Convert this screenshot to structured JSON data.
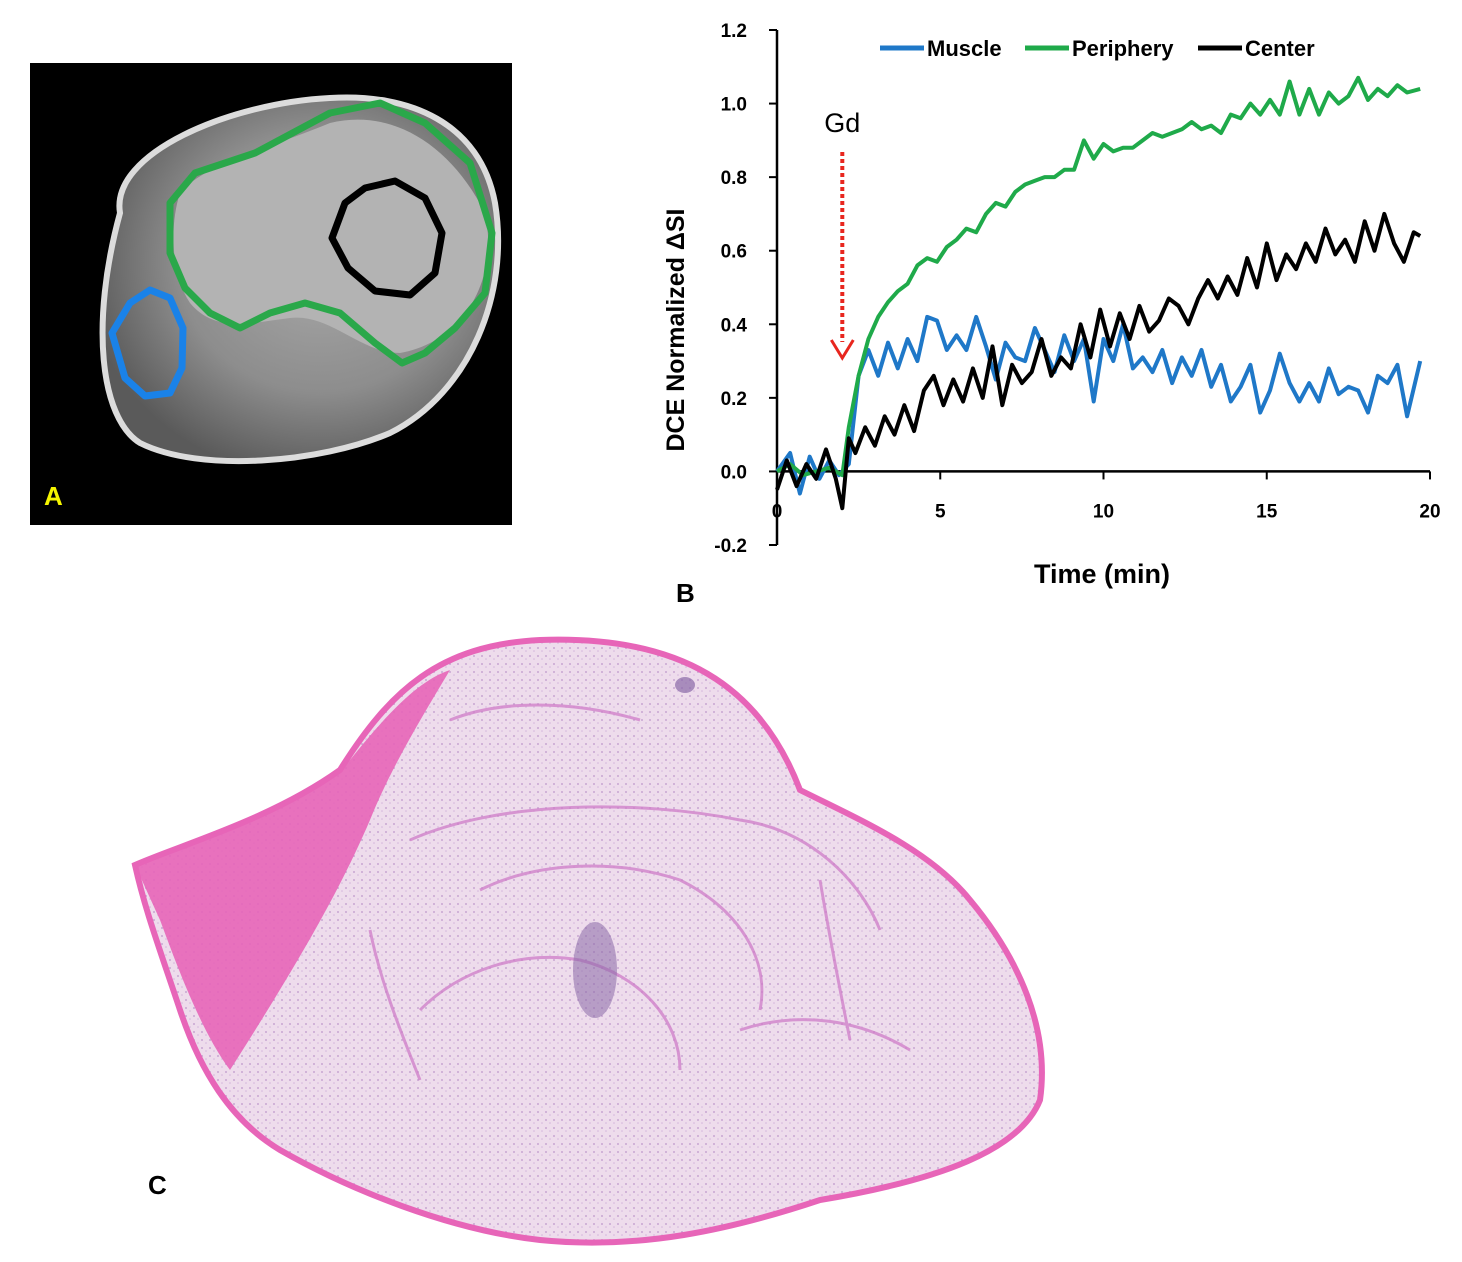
{
  "panels": {
    "a": "A",
    "b": "B",
    "c": "C"
  },
  "colors": {
    "muscle": "#1f78c8",
    "periphery": "#1faa4a",
    "center": "#000000",
    "roi_muscle": "#1a82e8",
    "roi_periphery": "#2aa84a",
    "roi_center": "#000000",
    "arrow": "#e8261e",
    "stain_pink": "#e765b8",
    "stain_light": "#eedcec",
    "stain_purple": "#8a6aa8"
  },
  "chart_data": {
    "type": "line",
    "title": "",
    "xlabel": "Time (min)",
    "ylabel": "DCE Normalized ΔSI",
    "xlim": [
      0,
      20
    ],
    "ylim": [
      -0.2,
      1.2
    ],
    "xticks": [
      "0",
      "5",
      "10",
      "15",
      "20"
    ],
    "yticks": [
      "-0.2",
      "0.0",
      "0.2",
      "0.4",
      "0.6",
      "0.8",
      "1.0",
      "1.2"
    ],
    "legend": [
      "Muscle",
      "Periphery",
      "Center"
    ],
    "legend_position": "top",
    "annotation": {
      "text": "Gd",
      "x": 2.0
    },
    "series": [
      {
        "name": "Muscle",
        "x": [
          0,
          0.4,
          0.7,
          1.0,
          1.3,
          1.6,
          1.9,
          2.2,
          2.5,
          2.8,
          3.1,
          3.4,
          3.7,
          4.0,
          4.3,
          4.6,
          4.9,
          5.2,
          5.5,
          5.8,
          6.1,
          6.4,
          6.7,
          7.0,
          7.3,
          7.6,
          7.9,
          8.2,
          8.5,
          8.8,
          9.1,
          9.4,
          9.7,
          10.0,
          10.3,
          10.6,
          10.9,
          11.2,
          11.5,
          11.8,
          12.1,
          12.4,
          12.7,
          13.0,
          13.3,
          13.6,
          13.9,
          14.2,
          14.5,
          14.8,
          15.1,
          15.4,
          15.7,
          16.0,
          16.3,
          16.6,
          16.9,
          17.2,
          17.5,
          17.8,
          18.1,
          18.4,
          18.7,
          19.0,
          19.3,
          19.7
        ],
        "y": [
          0.0,
          0.05,
          -0.06,
          0.04,
          -0.02,
          0.03,
          -0.01,
          0.02,
          0.26,
          0.33,
          0.26,
          0.35,
          0.28,
          0.36,
          0.3,
          0.42,
          0.41,
          0.33,
          0.37,
          0.33,
          0.42,
          0.34,
          0.25,
          0.35,
          0.31,
          0.3,
          0.39,
          0.33,
          0.27,
          0.37,
          0.3,
          0.36,
          0.19,
          0.36,
          0.3,
          0.4,
          0.28,
          0.31,
          0.27,
          0.33,
          0.24,
          0.31,
          0.26,
          0.33,
          0.23,
          0.29,
          0.19,
          0.23,
          0.29,
          0.16,
          0.22,
          0.32,
          0.24,
          0.19,
          0.24,
          0.19,
          0.28,
          0.21,
          0.23,
          0.22,
          0.16,
          0.26,
          0.24,
          0.29,
          0.15,
          0.3
        ]
      },
      {
        "name": "Periphery",
        "x": [
          0,
          0.4,
          0.8,
          1.2,
          1.6,
          2.0,
          2.2,
          2.5,
          2.8,
          3.1,
          3.4,
          3.7,
          4.0,
          4.3,
          4.6,
          4.9,
          5.2,
          5.5,
          5.8,
          6.1,
          6.4,
          6.7,
          7.0,
          7.3,
          7.6,
          7.9,
          8.2,
          8.5,
          8.8,
          9.1,
          9.4,
          9.7,
          10.0,
          10.3,
          10.6,
          10.9,
          11.2,
          11.5,
          11.8,
          12.1,
          12.4,
          12.7,
          13.0,
          13.3,
          13.6,
          13.9,
          14.2,
          14.5,
          14.8,
          15.1,
          15.4,
          15.7,
          16.0,
          16.3,
          16.6,
          16.9,
          17.2,
          17.5,
          17.8,
          18.1,
          18.4,
          18.7,
          19.0,
          19.3,
          19.7
        ],
        "y": [
          0.0,
          0.02,
          -0.01,
          0.0,
          0.01,
          -0.01,
          0.12,
          0.26,
          0.36,
          0.42,
          0.46,
          0.49,
          0.51,
          0.56,
          0.58,
          0.57,
          0.61,
          0.63,
          0.66,
          0.65,
          0.7,
          0.73,
          0.72,
          0.76,
          0.78,
          0.79,
          0.8,
          0.8,
          0.82,
          0.82,
          0.9,
          0.85,
          0.89,
          0.87,
          0.88,
          0.88,
          0.9,
          0.92,
          0.91,
          0.92,
          0.93,
          0.95,
          0.93,
          0.94,
          0.92,
          0.97,
          0.96,
          1.0,
          0.97,
          1.01,
          0.97,
          1.06,
          0.97,
          1.04,
          0.97,
          1.03,
          1.0,
          1.02,
          1.07,
          1.01,
          1.04,
          1.02,
          1.05,
          1.03,
          1.04
        ]
      },
      {
        "name": "Center",
        "x": [
          0,
          0.3,
          0.6,
          0.9,
          1.2,
          1.5,
          1.8,
          2.0,
          2.2,
          2.4,
          2.7,
          3.0,
          3.3,
          3.6,
          3.9,
          4.2,
          4.5,
          4.8,
          5.1,
          5.4,
          5.7,
          6.0,
          6.3,
          6.6,
          6.9,
          7.2,
          7.5,
          7.8,
          8.1,
          8.4,
          8.7,
          9.0,
          9.3,
          9.6,
          9.9,
          10.2,
          10.5,
          10.8,
          11.1,
          11.4,
          11.7,
          12.0,
          12.3,
          12.6,
          12.9,
          13.2,
          13.5,
          13.8,
          14.1,
          14.4,
          14.7,
          15.0,
          15.3,
          15.6,
          15.9,
          16.2,
          16.5,
          16.8,
          17.1,
          17.4,
          17.7,
          18.0,
          18.3,
          18.6,
          18.9,
          19.2,
          19.5,
          19.7
        ],
        "y": [
          -0.05,
          0.03,
          -0.04,
          0.02,
          -0.02,
          0.06,
          -0.02,
          -0.1,
          0.09,
          0.05,
          0.12,
          0.07,
          0.15,
          0.1,
          0.18,
          0.11,
          0.22,
          0.26,
          0.18,
          0.25,
          0.19,
          0.28,
          0.2,
          0.34,
          0.18,
          0.29,
          0.24,
          0.27,
          0.36,
          0.26,
          0.31,
          0.28,
          0.4,
          0.31,
          0.44,
          0.34,
          0.43,
          0.36,
          0.45,
          0.38,
          0.41,
          0.47,
          0.45,
          0.4,
          0.47,
          0.52,
          0.47,
          0.53,
          0.48,
          0.58,
          0.5,
          0.62,
          0.52,
          0.59,
          0.55,
          0.62,
          0.57,
          0.66,
          0.59,
          0.63,
          0.57,
          0.68,
          0.6,
          0.7,
          0.62,
          0.57,
          0.65,
          0.64
        ]
      }
    ]
  }
}
